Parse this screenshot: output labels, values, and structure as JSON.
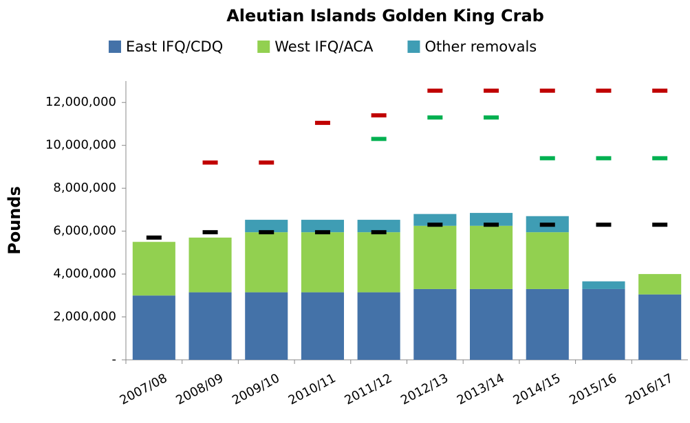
{
  "chart_data": {
    "type": "bar",
    "stacked": true,
    "title": "Aleutian Islands Golden King Crab",
    "y_label": "Pounds",
    "categories": [
      "2007/08",
      "2008/09",
      "2009/10",
      "2010/11",
      "2011/12",
      "2012/13",
      "2013/14",
      "2014/15",
      "2015/16",
      "2016/17"
    ],
    "series": [
      {
        "name": "East IFQ/CDQ",
        "color": "#4472a8",
        "values": [
          3000000,
          3150000,
          3150000,
          3150000,
          3150000,
          3300000,
          3300000,
          3300000,
          3300000,
          3050000
        ]
      },
      {
        "name": "West IFQ/ACA",
        "color": "#92d050",
        "values": [
          2500000,
          2550000,
          2800000,
          2800000,
          2800000,
          2950000,
          2950000,
          2650000,
          0,
          950000
        ]
      },
      {
        "name": "Other removals",
        "color": "#3f9db4",
        "values": [
          0,
          0,
          580000,
          580000,
          580000,
          550000,
          600000,
          750000,
          360000,
          0
        ]
      }
    ],
    "markers": [
      {
        "color": "#c00000",
        "values": [
          null,
          9200000,
          9200000,
          11050000,
          11400000,
          12550000,
          12550000,
          12550000,
          12550000,
          12550000
        ]
      },
      {
        "color": "#00b050",
        "values": [
          null,
          null,
          null,
          null,
          10300000,
          11300000,
          11300000,
          9400000,
          9400000,
          9400000
        ]
      },
      {
        "color": "#000000",
        "values": [
          5700000,
          5950000,
          5950000,
          5950000,
          5950000,
          6300000,
          6300000,
          6300000,
          6300000,
          6300000
        ]
      }
    ],
    "ylim": [
      0,
      13000000
    ],
    "yticks": [
      {
        "value": 0,
        "label": "-"
      },
      {
        "value": 2000000,
        "label": "2,000,000"
      },
      {
        "value": 4000000,
        "label": "4,000,000"
      },
      {
        "value": 6000000,
        "label": "6,000,000"
      },
      {
        "value": 8000000,
        "label": "8,000,000"
      },
      {
        "value": 10000000,
        "label": "10,000,000"
      },
      {
        "value": 12000000,
        "label": "12,000,000"
      }
    ],
    "legend": "top"
  }
}
